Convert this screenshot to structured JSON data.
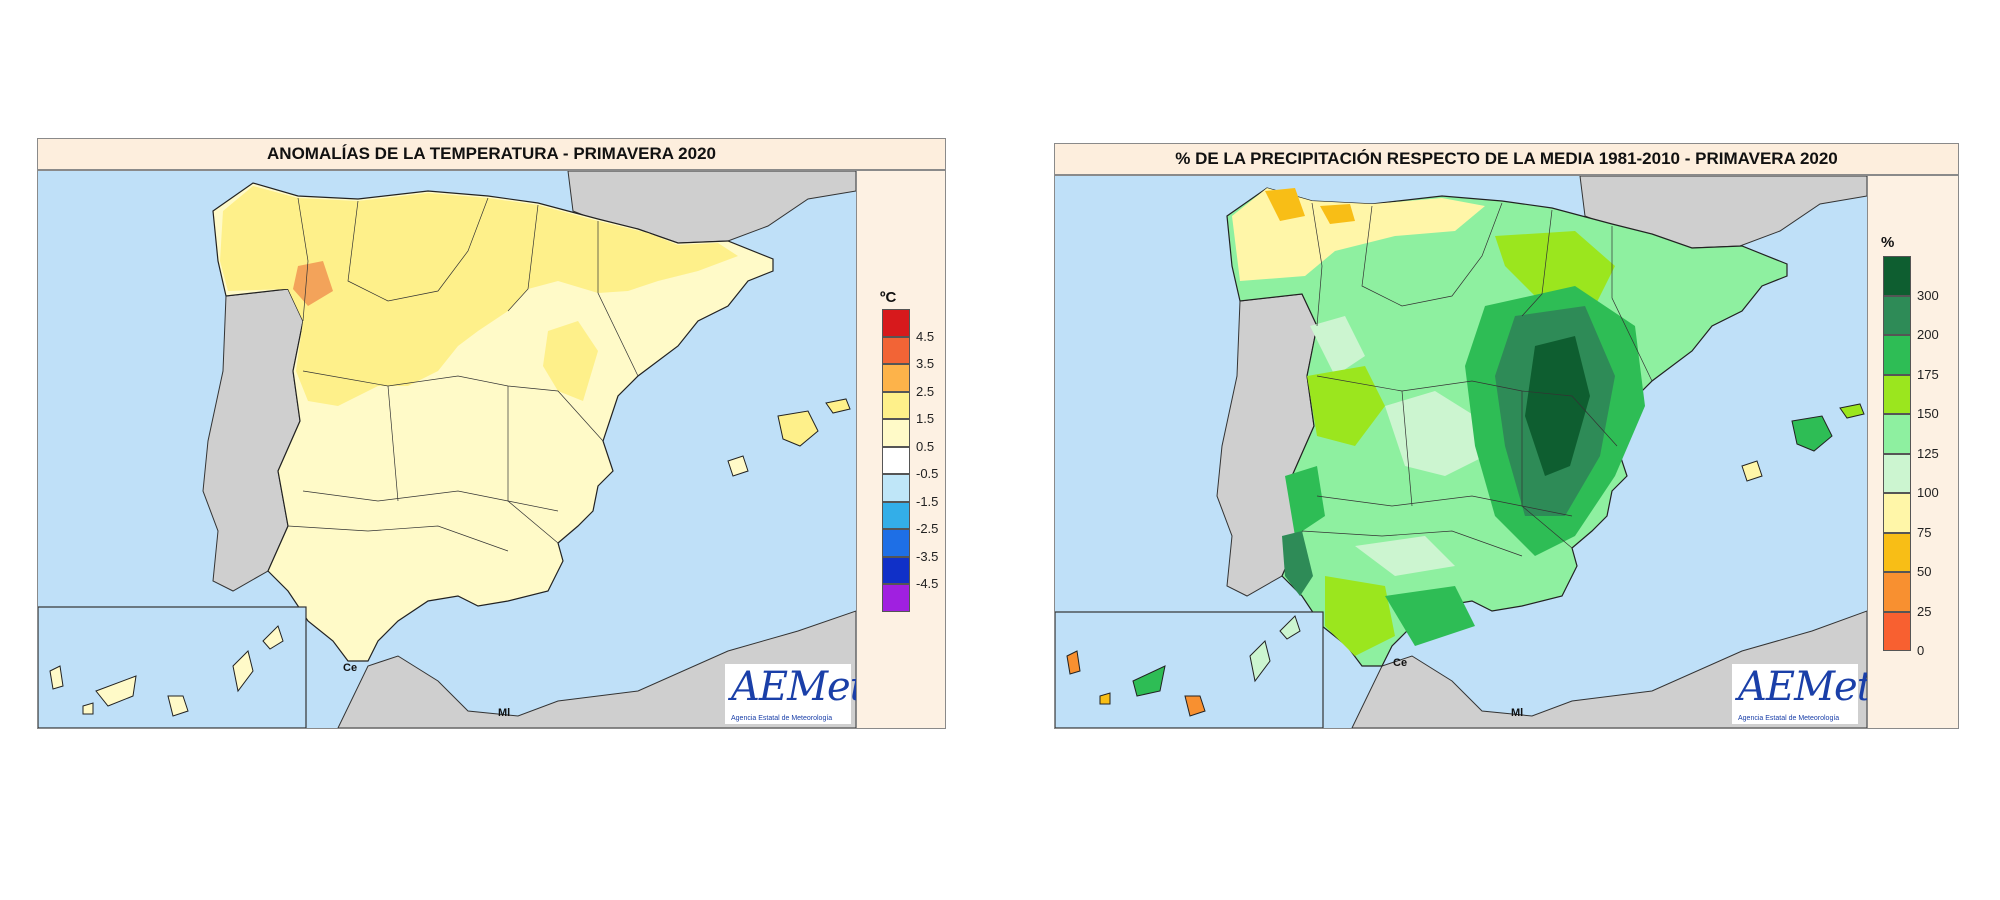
{
  "left": {
    "title": "ANOMALÍAS DE LA TEMPERATURA - PRIMAVERA 2020",
    "legend_unit": "ºC",
    "legend_labels": [
      "4.5",
      "3.5",
      "2.5",
      "1.5",
      "0.5",
      "-0.5",
      "-1.5",
      "-2.5",
      "-3.5",
      "-4.5"
    ],
    "legend_colors": [
      "#d7191c",
      "#f26436",
      "#fdb34a",
      "#fef08a",
      "#fffac8",
      "#ffffff",
      "#bfe6f8",
      "#33aee8",
      "#1e6fe6",
      "#1030c8",
      "#a020e0"
    ],
    "labels": {
      "ceuta": "Ce",
      "melilla": "Ml"
    }
  },
  "right": {
    "title": "% DE LA PRECIPITACIÓN RESPECTO DE LA MEDIA 1981-2010 - PRIMAVERA 2020",
    "legend_unit": "%",
    "legend_labels": [
      "300",
      "200",
      "175",
      "150",
      "125",
      "100",
      "75",
      "50",
      "25",
      "0"
    ],
    "legend_colors": [
      "#0e5e30",
      "#2e8b57",
      "#2ebd55",
      "#9be61e",
      "#8ef0a0",
      "#ccf5d0",
      "#fff6a8",
      "#f8be16",
      "#f89030",
      "#f86030"
    ],
    "labels": {
      "ceuta": "Ce",
      "melilla": "Ml"
    }
  },
  "logo": {
    "text": "AEMet",
    "subtitle": "Agencia Estatal de Meteorología"
  },
  "colors": {
    "sea": "#bfe0f8",
    "land_other": "#cfcfcf",
    "temp_main": "#fffac8",
    "temp_warm": "#fef08a",
    "temp_hot": "#f3a35a",
    "prec_base": "#8ef0a0",
    "prec_light": "#ccf5d0",
    "prec_lime": "#9be61e",
    "prec_green": "#2ebd55",
    "prec_mid": "#2e8b57",
    "prec_dark": "#0e5e30",
    "prec_yellow": "#fff6a8",
    "prec_orange": "#f8be16"
  }
}
